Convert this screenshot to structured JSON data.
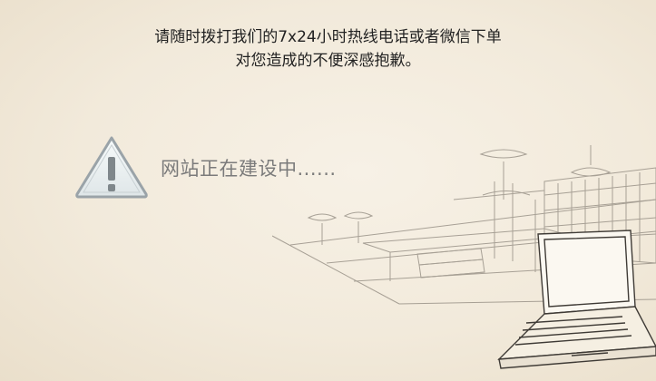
{
  "notice": {
    "line1": "请随时拨打我们的7x24小时热线电话或者微信下单",
    "line2": "对您造成的不便深感抱歉。"
  },
  "status": {
    "message": "网站正在建设中......"
  },
  "icons": {
    "warning": "warning-icon",
    "illustration": "library-laptop-illustration"
  },
  "colors": {
    "background": "#f3ecdf",
    "notice_text": "#222222",
    "status_text": "#7b7b7b",
    "icon_stroke": "#9aa3a8"
  }
}
